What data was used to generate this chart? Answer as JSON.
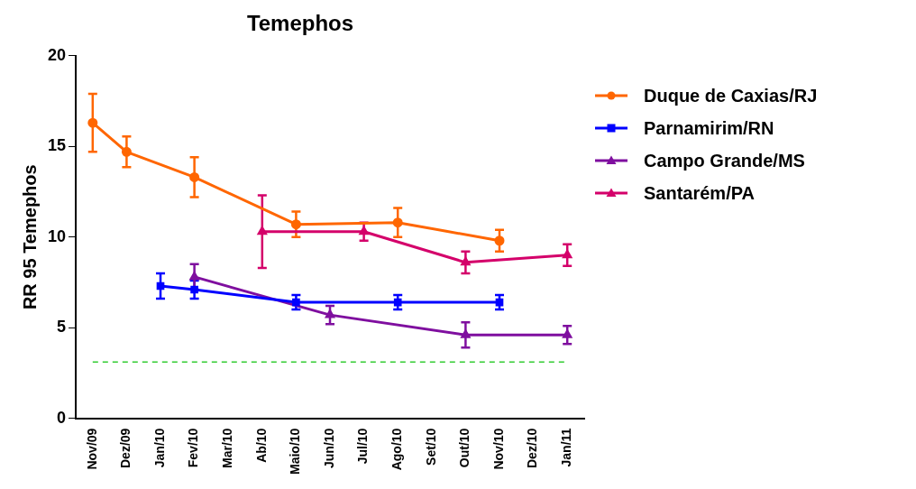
{
  "chart_data": {
    "type": "line",
    "title": "Temephos",
    "ylabel": "RR 95 Temephos",
    "categories": [
      "Nov/09",
      "Dez/09",
      "Jan/10",
      "Fev/10",
      "Mar/10",
      "Ab/10",
      "Maio/10",
      "Jun/10",
      "Jul/10",
      "Ago/10",
      "Set/10",
      "Out/10",
      "Nov/10",
      "Dez/10",
      "Jan/11"
    ],
    "series": [
      {
        "name": "Duque de Caxias/RJ",
        "color": "#ff6600",
        "marker": "circle",
        "values": [
          16.3,
          14.7,
          null,
          13.3,
          null,
          null,
          10.7,
          null,
          null,
          10.8,
          null,
          null,
          9.8,
          null,
          null
        ],
        "errors": [
          1.6,
          0.85,
          null,
          1.1,
          null,
          null,
          0.7,
          null,
          null,
          0.8,
          null,
          null,
          0.6,
          null,
          null
        ]
      },
      {
        "name": "Parnamirim/RN",
        "color": "#0000ff",
        "marker": "square",
        "values": [
          null,
          null,
          7.3,
          7.1,
          null,
          null,
          6.4,
          null,
          null,
          6.4,
          null,
          null,
          6.4,
          null,
          null
        ],
        "errors": [
          null,
          null,
          0.7,
          0.5,
          null,
          null,
          0.4,
          null,
          null,
          0.4,
          null,
          null,
          0.4,
          null,
          null
        ]
      },
      {
        "name": "Campo Grande/MS",
        "color": "#7f0f9f",
        "marker": "triangle",
        "values": [
          null,
          null,
          null,
          7.8,
          null,
          null,
          null,
          5.7,
          null,
          null,
          null,
          4.6,
          null,
          null,
          4.6
        ],
        "errors": [
          null,
          null,
          null,
          0.7,
          null,
          null,
          null,
          0.5,
          null,
          null,
          null,
          0.7,
          null,
          null,
          0.5
        ]
      },
      {
        "name": "Santarém/PA",
        "color": "#d4006a",
        "marker": "triangle",
        "values": [
          null,
          null,
          null,
          null,
          null,
          10.3,
          null,
          null,
          10.3,
          null,
          null,
          8.6,
          null,
          null,
          9.0
        ],
        "errors": [
          null,
          null,
          null,
          null,
          null,
          2.0,
          null,
          null,
          0.5,
          null,
          null,
          0.6,
          null,
          null,
          0.6
        ]
      }
    ],
    "ylim": [
      0,
      20
    ],
    "yticks": [
      0,
      5,
      10,
      15,
      20
    ],
    "grid": false,
    "legend": "right",
    "ref_lines": [
      {
        "axis": "y",
        "value": 3.1,
        "color": "#33cc33",
        "line_style": "dashed"
      }
    ]
  }
}
